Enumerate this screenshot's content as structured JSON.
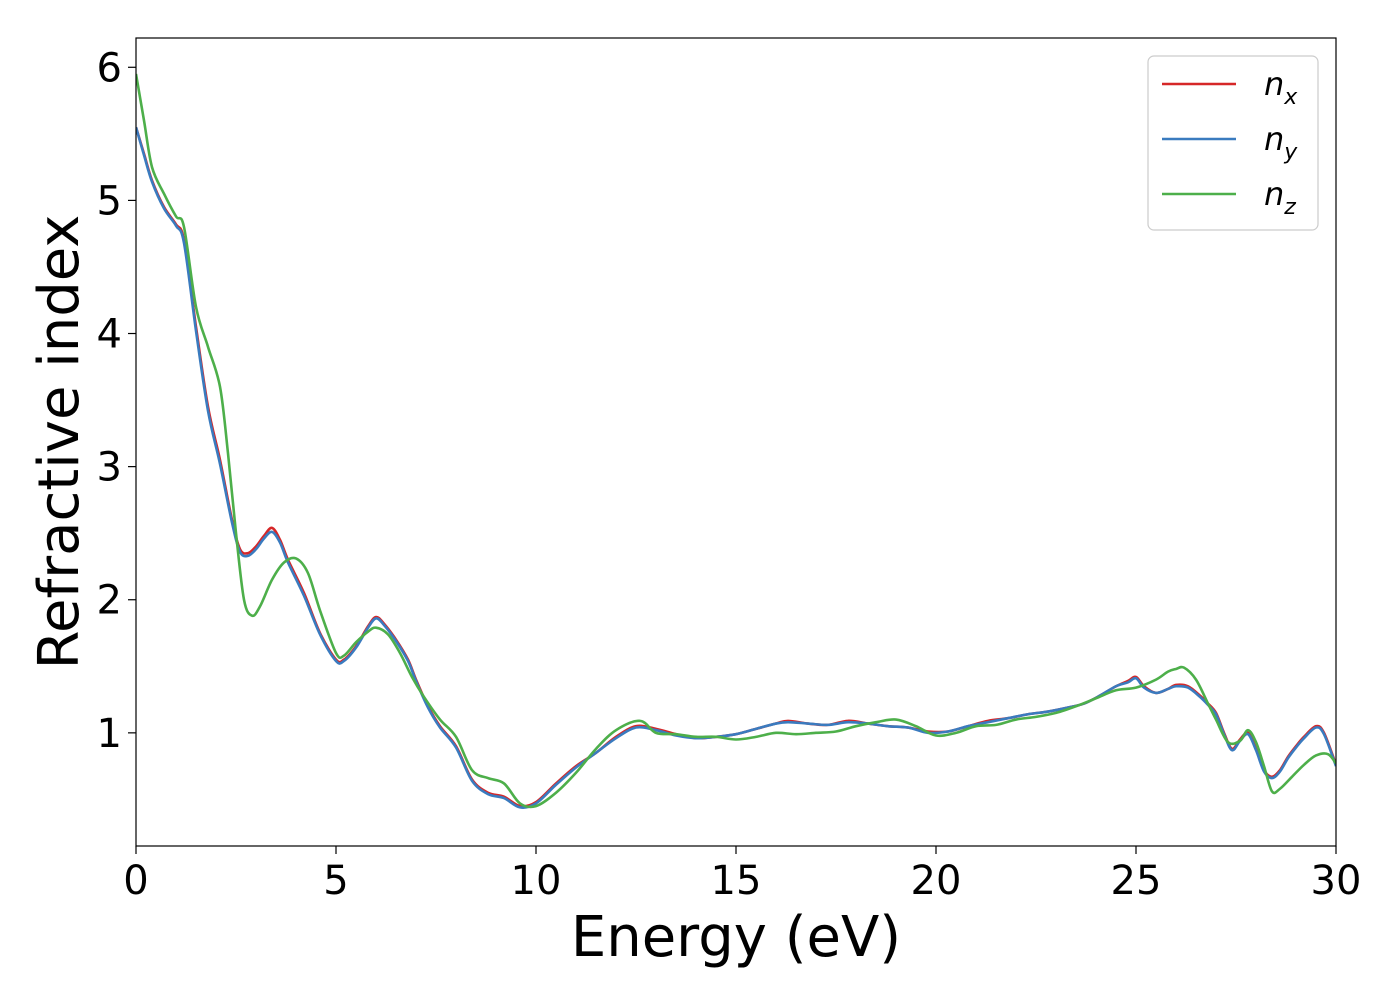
{
  "chart_data": {
    "type": "line",
    "title": "",
    "xlabel": "Energy (eV)",
    "ylabel": "Refractive index",
    "xlim": [
      0,
      30
    ],
    "ylim": [
      0.15,
      6.22
    ],
    "xticks": [
      0,
      5,
      10,
      15,
      20,
      25,
      30
    ],
    "yticks": [
      1,
      2,
      3,
      4,
      5,
      6
    ],
    "xtick_labels": [
      "0",
      "5",
      "10",
      "15",
      "20",
      "25",
      "30"
    ],
    "ytick_labels": [
      "1",
      "2",
      "3",
      "4",
      "5",
      "6"
    ],
    "grid": false,
    "legend_position": "top-right",
    "series": [
      {
        "name": "n",
        "sub": "x",
        "color": "#d62728",
        "x": [
          0,
          0.2,
          0.4,
          0.7,
          1.0,
          1.2,
          1.5,
          1.8,
          2.1,
          2.4,
          2.6,
          2.8,
          3.0,
          3.2,
          3.4,
          3.6,
          3.8,
          4.2,
          4.6,
          5.0,
          5.2,
          5.5,
          5.8,
          6.0,
          6.2,
          6.5,
          6.8,
          7.0,
          7.3,
          7.6,
          8.0,
          8.4,
          8.8,
          9.2,
          9.6,
          10.0,
          10.5,
          11.0,
          11.5,
          12.0,
          12.5,
          13.0,
          13.5,
          14.0,
          14.5,
          15.0,
          15.5,
          16.0,
          16.3,
          16.8,
          17.3,
          17.8,
          18.3,
          18.8,
          19.3,
          19.8,
          20.3,
          20.8,
          21.3,
          21.8,
          22.3,
          22.8,
          23.3,
          23.7,
          24.1,
          24.5,
          24.8,
          25.0,
          25.2,
          25.5,
          25.8,
          26.0,
          26.3,
          26.6,
          26.8,
          27.0,
          27.2,
          27.4,
          27.6,
          27.8,
          28.0,
          28.2,
          28.4,
          28.6,
          28.8,
          29.0,
          29.2,
          29.5,
          29.7,
          30.0
        ],
        "y": [
          5.55,
          5.35,
          5.15,
          4.95,
          4.82,
          4.7,
          4.05,
          3.45,
          3.05,
          2.6,
          2.38,
          2.35,
          2.4,
          2.48,
          2.54,
          2.45,
          2.3,
          2.05,
          1.75,
          1.55,
          1.55,
          1.65,
          1.8,
          1.87,
          1.82,
          1.7,
          1.55,
          1.4,
          1.2,
          1.05,
          0.9,
          0.65,
          0.55,
          0.52,
          0.45,
          0.48,
          0.62,
          0.75,
          0.85,
          0.97,
          1.05,
          1.03,
          0.99,
          0.96,
          0.97,
          0.99,
          1.03,
          1.07,
          1.09,
          1.07,
          1.06,
          1.09,
          1.07,
          1.05,
          1.04,
          1.01,
          1.01,
          1.05,
          1.09,
          1.11,
          1.14,
          1.16,
          1.19,
          1.22,
          1.28,
          1.35,
          1.39,
          1.42,
          1.35,
          1.3,
          1.33,
          1.36,
          1.35,
          1.28,
          1.22,
          1.15,
          1.0,
          0.88,
          0.95,
          1.0,
          0.88,
          0.72,
          0.67,
          0.72,
          0.82,
          0.9,
          0.97,
          1.05,
          1.0,
          0.76
        ]
      },
      {
        "name": "n",
        "sub": "y",
        "color": "#3a7bbf",
        "x": [
          0,
          0.2,
          0.4,
          0.7,
          1.0,
          1.2,
          1.5,
          1.8,
          2.1,
          2.4,
          2.6,
          2.8,
          3.0,
          3.2,
          3.4,
          3.6,
          3.8,
          4.2,
          4.6,
          5.0,
          5.2,
          5.5,
          5.8,
          6.0,
          6.2,
          6.5,
          6.8,
          7.0,
          7.3,
          7.6,
          8.0,
          8.4,
          8.8,
          9.2,
          9.6,
          10.0,
          10.5,
          11.0,
          11.5,
          12.0,
          12.5,
          13.0,
          13.5,
          14.0,
          14.5,
          15.0,
          15.5,
          16.0,
          16.3,
          16.8,
          17.3,
          17.8,
          18.3,
          18.8,
          19.3,
          19.8,
          20.3,
          20.8,
          21.3,
          21.8,
          22.3,
          22.8,
          23.3,
          23.7,
          24.1,
          24.5,
          24.8,
          25.0,
          25.2,
          25.5,
          25.8,
          26.0,
          26.3,
          26.6,
          26.8,
          27.0,
          27.2,
          27.4,
          27.6,
          27.8,
          28.0,
          28.2,
          28.4,
          28.6,
          28.8,
          29.0,
          29.2,
          29.5,
          29.7,
          30.0
        ],
        "y": [
          5.55,
          5.34,
          5.14,
          4.94,
          4.81,
          4.68,
          4.02,
          3.42,
          3.02,
          2.58,
          2.36,
          2.33,
          2.38,
          2.46,
          2.51,
          2.43,
          2.28,
          2.03,
          1.74,
          1.54,
          1.54,
          1.64,
          1.79,
          1.86,
          1.81,
          1.69,
          1.54,
          1.39,
          1.19,
          1.04,
          0.89,
          0.64,
          0.54,
          0.51,
          0.44,
          0.47,
          0.61,
          0.74,
          0.85,
          0.96,
          1.04,
          1.02,
          0.98,
          0.96,
          0.97,
          0.99,
          1.03,
          1.07,
          1.08,
          1.07,
          1.06,
          1.08,
          1.07,
          1.05,
          1.04,
          1.0,
          1.01,
          1.05,
          1.08,
          1.11,
          1.14,
          1.16,
          1.19,
          1.22,
          1.28,
          1.35,
          1.38,
          1.41,
          1.34,
          1.3,
          1.33,
          1.35,
          1.34,
          1.27,
          1.21,
          1.14,
          0.99,
          0.87,
          0.94,
          0.99,
          0.87,
          0.71,
          0.66,
          0.71,
          0.81,
          0.89,
          0.96,
          1.04,
          0.99,
          0.75
        ]
      },
      {
        "name": "n",
        "sub": "z",
        "color": "#4daf4a",
        "x": [
          0,
          0.2,
          0.4,
          0.7,
          1.0,
          1.2,
          1.5,
          1.8,
          2.1,
          2.3,
          2.5,
          2.7,
          2.9,
          3.1,
          3.4,
          3.7,
          4.0,
          4.3,
          4.6,
          5.0,
          5.2,
          5.5,
          5.8,
          6.0,
          6.3,
          6.6,
          6.9,
          7.2,
          7.6,
          8.0,
          8.4,
          8.8,
          9.2,
          9.6,
          10.0,
          10.5,
          11.0,
          11.5,
          12.0,
          12.6,
          13.0,
          13.5,
          14.0,
          14.5,
          15.0,
          15.5,
          16.0,
          16.5,
          17.0,
          17.5,
          18.0,
          18.5,
          19.0,
          19.5,
          20.0,
          20.5,
          21.0,
          21.5,
          22.0,
          22.5,
          23.0,
          23.5,
          24.0,
          24.5,
          25.0,
          25.5,
          25.8,
          26.0,
          26.2,
          26.5,
          26.8,
          27.0,
          27.3,
          27.6,
          27.8,
          28.0,
          28.2,
          28.4,
          28.6,
          28.9,
          29.2,
          29.5,
          29.8,
          30.0
        ],
        "y": [
          5.95,
          5.6,
          5.25,
          5.05,
          4.88,
          4.8,
          4.2,
          3.9,
          3.6,
          3.1,
          2.5,
          2.0,
          1.88,
          1.95,
          2.15,
          2.28,
          2.31,
          2.2,
          1.92,
          1.6,
          1.58,
          1.68,
          1.76,
          1.79,
          1.74,
          1.6,
          1.42,
          1.27,
          1.1,
          0.97,
          0.72,
          0.66,
          0.62,
          0.47,
          0.45,
          0.55,
          0.7,
          0.88,
          1.02,
          1.09,
          1.0,
          0.99,
          0.97,
          0.97,
          0.95,
          0.97,
          1.0,
          0.99,
          1.0,
          1.01,
          1.05,
          1.08,
          1.1,
          1.05,
          0.98,
          1.0,
          1.05,
          1.06,
          1.1,
          1.12,
          1.15,
          1.2,
          1.26,
          1.32,
          1.34,
          1.4,
          1.46,
          1.48,
          1.49,
          1.4,
          1.22,
          1.1,
          0.93,
          0.94,
          1.02,
          0.93,
          0.75,
          0.56,
          0.58,
          0.67,
          0.76,
          0.83,
          0.84,
          0.77
        ]
      }
    ]
  }
}
